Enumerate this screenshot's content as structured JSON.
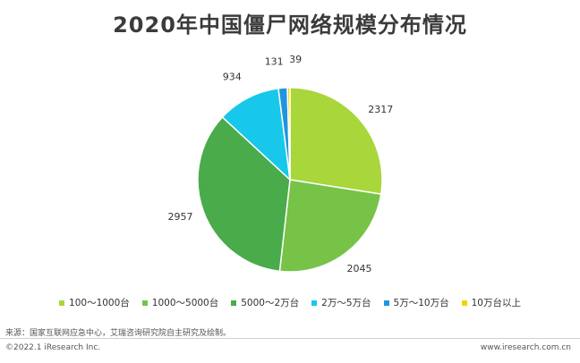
{
  "title": "2020年中国僵尸网络规模分布情况",
  "chart_data": {
    "type": "pie",
    "title": "2020年中国僵尸网络规模分布情况",
    "categories": [
      "100～1000台",
      "1000～5000台",
      "5000～2万台",
      "2万～5万台",
      "5万～10万台",
      "10万台以上"
    ],
    "values": [
      2317,
      2045,
      2957,
      934,
      131,
      39
    ],
    "colors": [
      "#a8d63b",
      "#76c348",
      "#4aab4a",
      "#17c8ea",
      "#1f95df",
      "#f2d500"
    ],
    "labels": [
      "2317",
      "2045",
      "2957",
      "934",
      "131",
      "39"
    ],
    "legend_position": "bottom"
  },
  "source": "来源：国家互联网应急中心，艾瑞咨询研究院自主研究及绘制。",
  "footer": {
    "copyright": "©2022.1 iResearch Inc.",
    "url": "www.iresearch.com.cn"
  }
}
